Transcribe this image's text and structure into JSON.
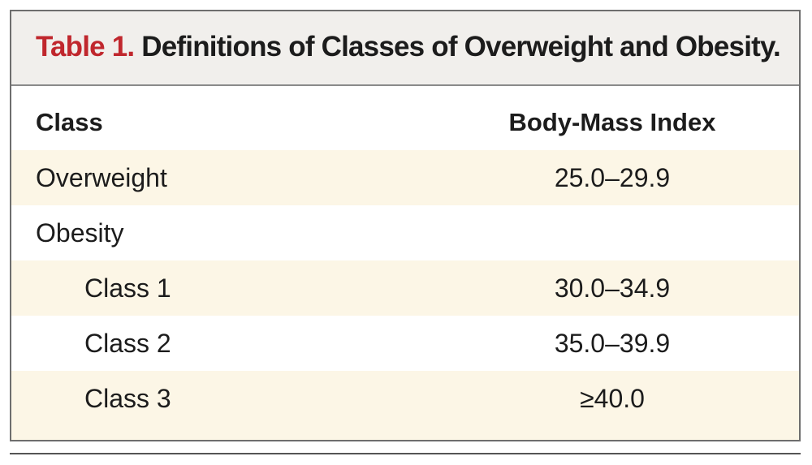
{
  "title": {
    "prefix": "Table 1.",
    "text": "Definitions of Classes of Overweight and Obesity."
  },
  "columns": {
    "class": "Class",
    "bmi": "Body-Mass Index"
  },
  "rows": [
    {
      "class": "Overweight",
      "bmi": "25.0–29.9"
    },
    {
      "class": "Obesity",
      "bmi": ""
    },
    {
      "class": "Class 1",
      "bmi": "30.0–34.9"
    },
    {
      "class": "Class 2",
      "bmi": "35.0–39.9"
    },
    {
      "class": "Class 3",
      "bmi": "≥40.0"
    }
  ],
  "colors": {
    "title_prefix": "#c0272d",
    "title_bar_bg": "#f1efec",
    "row_shade": "#fcf6e6",
    "border": "#6e6e6e"
  }
}
